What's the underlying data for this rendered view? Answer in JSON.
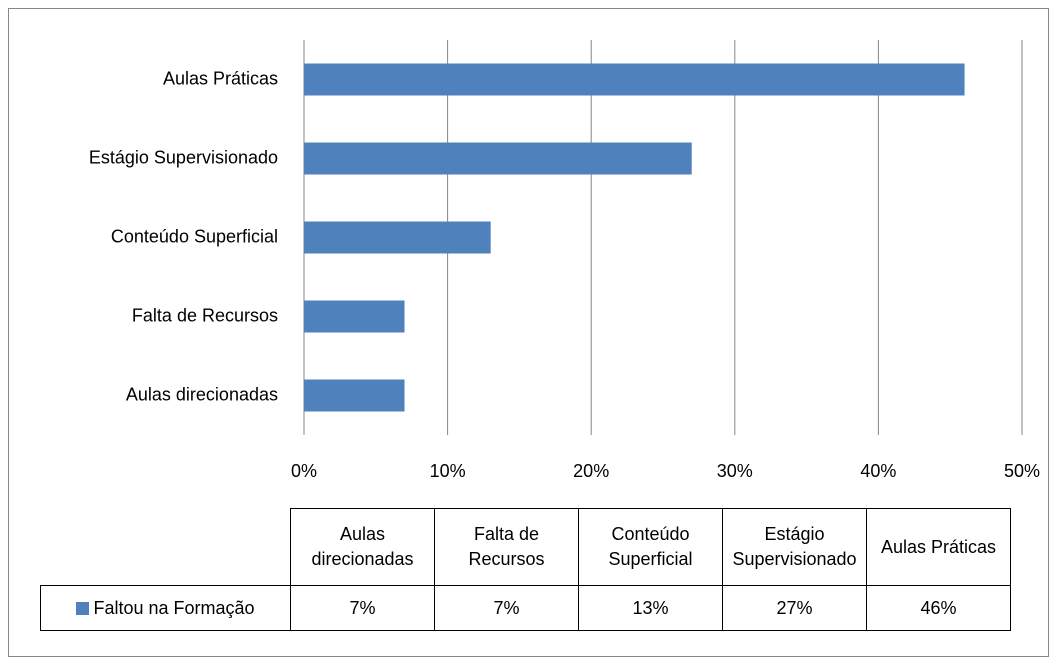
{
  "chart_data": {
    "type": "bar",
    "orientation": "horizontal",
    "categories": [
      "Aulas direcionadas",
      "Falta de Recursos",
      "Conteúdo Superficial",
      "Estágio Supervisionado",
      "Aulas Práticas"
    ],
    "series": [
      {
        "name": "Faltou na Formação",
        "color": "#4f81bd",
        "values": [
          7,
          7,
          13,
          27,
          46
        ],
        "value_labels": [
          "7%",
          "7%",
          "13%",
          "27%",
          "46%"
        ]
      }
    ],
    "xlim": [
      0,
      50
    ],
    "xticks": [
      {
        "value": 0,
        "label": "0%"
      },
      {
        "value": 10,
        "label": "10%"
      },
      {
        "value": 20,
        "label": "20%"
      },
      {
        "value": 30,
        "label": "30%"
      },
      {
        "value": 40,
        "label": "40%"
      },
      {
        "value": 50,
        "label": "50%"
      }
    ],
    "grid": true,
    "data_table": true
  }
}
